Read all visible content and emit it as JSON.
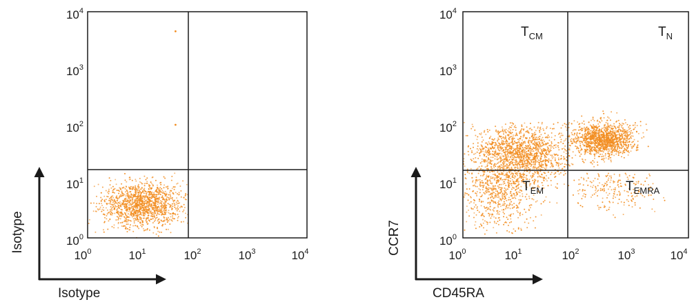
{
  "colors": {
    "dots": "#f28c1e",
    "frame": "#1a1a1a"
  },
  "chart_data": [
    {
      "type": "scatter",
      "title": "",
      "xlabel": "Isotype",
      "ylabel": "Isotype",
      "x_scale": "log",
      "y_scale": "log",
      "xlim": [
        1,
        10000
      ],
      "ylim": [
        1,
        10000
      ],
      "x_ticks": [
        {
          "base": "10",
          "exp": "0"
        },
        {
          "base": "10",
          "exp": "1"
        },
        {
          "base": "10",
          "exp": "2"
        },
        {
          "base": "10",
          "exp": "3"
        },
        {
          "base": "10",
          "exp": "4"
        }
      ],
      "y_ticks": [
        {
          "base": "10",
          "exp": "0"
        },
        {
          "base": "10",
          "exp": "1"
        },
        {
          "base": "10",
          "exp": "2"
        },
        {
          "base": "10",
          "exp": "3"
        },
        {
          "base": "10",
          "exp": "4"
        }
      ],
      "gates": {
        "x": 80,
        "y": 16
      },
      "quadrant_labels": [],
      "populations": [
        {
          "x_center": 10,
          "y_center": 4,
          "x_spread_decades": 0.38,
          "y_spread_decades": 0.2,
          "x_range": [
            1,
            70
          ],
          "y_range": [
            1,
            14
          ],
          "count": 1400
        }
      ],
      "outliers": [
        {
          "x": 40,
          "y": 4500
        },
        {
          "x": 40,
          "y": 100
        }
      ]
    },
    {
      "type": "scatter",
      "title": "",
      "xlabel": "CD45RA",
      "ylabel": "CCR7",
      "x_scale": "log",
      "y_scale": "log",
      "xlim": [
        1,
        10000
      ],
      "ylim": [
        1,
        10000
      ],
      "x_ticks": [
        {
          "base": "10",
          "exp": "0"
        },
        {
          "base": "10",
          "exp": "1"
        },
        {
          "base": "10",
          "exp": "2"
        },
        {
          "base": "10",
          "exp": "3"
        },
        {
          "base": "10",
          "exp": "4"
        }
      ],
      "y_ticks": [
        {
          "base": "10",
          "exp": "0"
        },
        {
          "base": "10",
          "exp": "1"
        },
        {
          "base": "10",
          "exp": "2"
        },
        {
          "base": "10",
          "exp": "3"
        },
        {
          "base": "10",
          "exp": "4"
        }
      ],
      "gates": {
        "x": 80,
        "y": 14
      },
      "quadrant_labels": [
        {
          "main": "T",
          "sub": "CM",
          "position": "top-left"
        },
        {
          "main": "T",
          "sub": "N",
          "position": "top-right"
        },
        {
          "main": "T",
          "sub": "EM",
          "position": "bottom-left"
        },
        {
          "main": "T",
          "sub": "EMRA",
          "position": "bottom-right"
        }
      ],
      "populations": [
        {
          "x_center": 10,
          "y_center": 30,
          "x_spread_decades": 0.45,
          "y_spread_decades": 0.28,
          "x_range": [
            1,
            90
          ],
          "y_range": [
            2,
            110
          ],
          "count": 1700
        },
        {
          "x_center": 4,
          "y_center": 6,
          "x_spread_decades": 0.35,
          "y_spread_decades": 0.35,
          "x_range": [
            1,
            80
          ],
          "y_range": [
            1.1,
            14
          ],
          "count": 650
        },
        {
          "x_center": 300,
          "y_center": 55,
          "x_spread_decades": 0.28,
          "y_spread_decades": 0.15,
          "x_range": [
            70,
            2000
          ],
          "y_range": [
            16,
            180
          ],
          "count": 1300
        },
        {
          "x_center": 500,
          "y_center": 8,
          "x_spread_decades": 0.4,
          "y_spread_decades": 0.25,
          "x_range": [
            80,
            5000
          ],
          "y_range": [
            2,
            14
          ],
          "count": 260
        }
      ],
      "outliers": []
    }
  ]
}
